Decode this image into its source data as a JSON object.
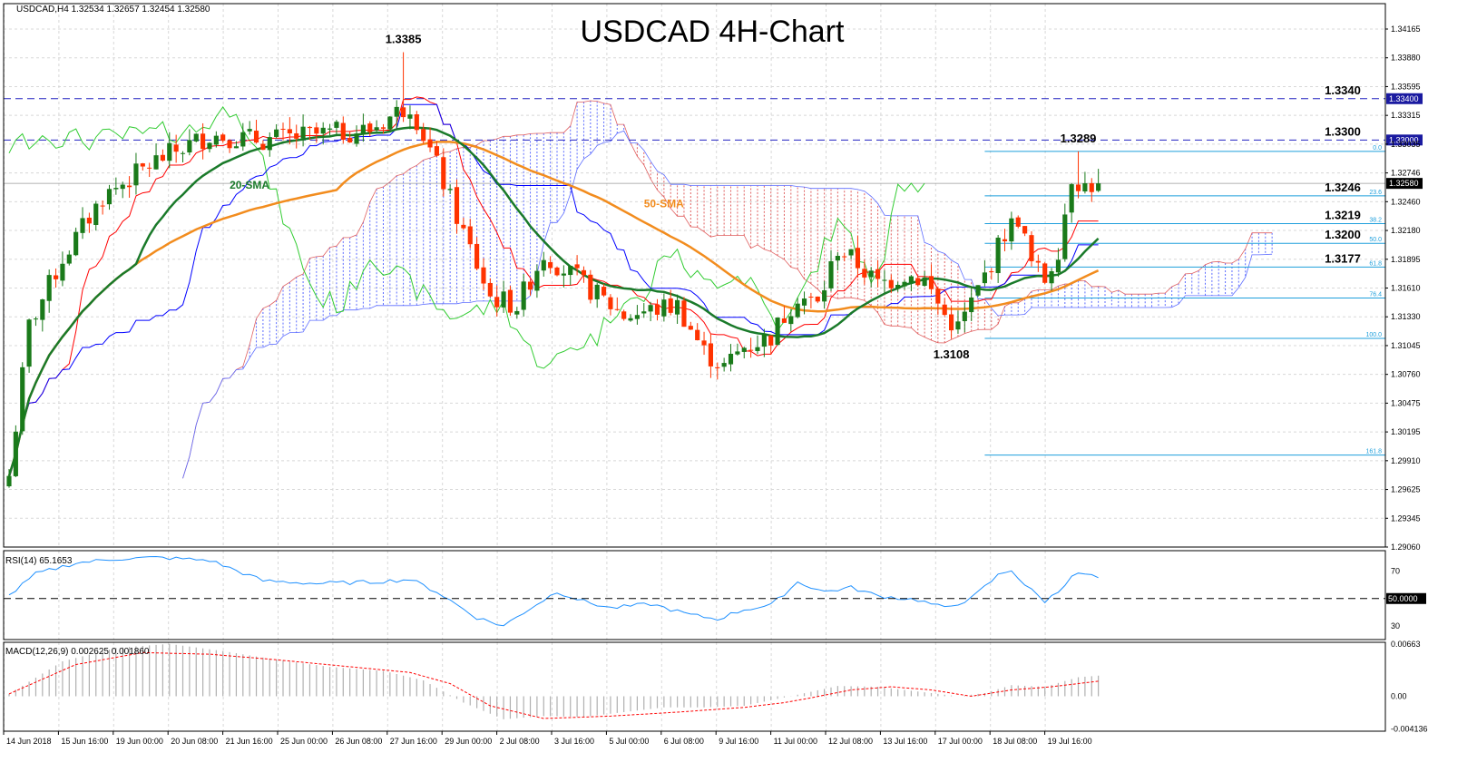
{
  "header": {
    "symbol_info": "USDCAD,H4  1.32534 1.32657 1.32454 1.32580",
    "title": "USDCAD 4H-Chart"
  },
  "colors": {
    "bull_candle": "#1a7a1a",
    "bear_candle": "#ff3300",
    "sma20": "#1a7a2a",
    "sma50": "#f28c1e",
    "tenkan": "#ff0000",
    "kijun": "#0000ff",
    "chikou": "#33cc33",
    "cloud_bull": "#e06060",
    "cloud_bear": "#5c6cff",
    "fib": "#1e9fdc",
    "hline": "#2020c0",
    "rsi": "#1e90ff",
    "macd_signal": "#ff0000",
    "macd_hist": "#b0b0b0",
    "grid": "#d8d8d8"
  },
  "chart_data": [
    {
      "type": "candlestick",
      "title": "USDCAD 4H-Chart",
      "ylim": [
        1.2906,
        1.3432
      ],
      "y_ticks": [
        "1.34165",
        "1.33880",
        "1.33595",
        "1.33315",
        "1.33035",
        "1.32746",
        "1.32460",
        "1.32180",
        "1.31895",
        "1.31610",
        "1.31330",
        "1.31045",
        "1.30760",
        "1.30475",
        "1.30195",
        "1.29910",
        "1.29625",
        "1.29345",
        "1.29060"
      ],
      "x_labels": [
        "14 Jun 2018",
        "15 Jun 16:00",
        "19 Jun 00:00",
        "20 Jun 08:00",
        "21 Jun 16:00",
        "25 Jun 00:00",
        "26 Jun 08:00",
        "27 Jun 16:00",
        "29 Jun 00:00",
        "2 Jul 08:00",
        "3 Jul 16:00",
        "5 Jul 00:00",
        "6 Jul 08:00",
        "9 Jul 16:00",
        "11 Jul 00:00",
        "12 Jul 08:00",
        "13 Jul 16:00",
        "17 Jul 00:00",
        "18 Jul 08:00",
        "19 Jul 16:00"
      ],
      "anchors": [
        {
          "bar": 0,
          "price": 1.2975
        },
        {
          "bar": 3,
          "price": 1.312
        },
        {
          "bar": 8,
          "price": 1.3185
        },
        {
          "bar": 14,
          "price": 1.3245
        },
        {
          "bar": 22,
          "price": 1.328
        },
        {
          "bar": 30,
          "price": 1.3305
        },
        {
          "bar": 38,
          "price": 1.33
        },
        {
          "bar": 46,
          "price": 1.3305
        },
        {
          "bar": 54,
          "price": 1.331
        },
        {
          "bar": 60,
          "price": 1.3335
        },
        {
          "bar": 64,
          "price": 1.3275
        },
        {
          "bar": 68,
          "price": 1.321
        },
        {
          "bar": 72,
          "price": 1.3148
        },
        {
          "bar": 76,
          "price": 1.314
        },
        {
          "bar": 80,
          "price": 1.319
        },
        {
          "bar": 84,
          "price": 1.317
        },
        {
          "bar": 88,
          "price": 1.315
        },
        {
          "bar": 92,
          "price": 1.313
        },
        {
          "bar": 96,
          "price": 1.3135
        },
        {
          "bar": 100,
          "price": 1.314
        },
        {
          "bar": 104,
          "price": 1.3095
        },
        {
          "bar": 107,
          "price": 1.308
        },
        {
          "bar": 110,
          "price": 1.31
        },
        {
          "bar": 114,
          "price": 1.311
        },
        {
          "bar": 118,
          "price": 1.315
        },
        {
          "bar": 121,
          "price": 1.314
        },
        {
          "bar": 124,
          "price": 1.3195
        },
        {
          "bar": 127,
          "price": 1.318
        },
        {
          "bar": 130,
          "price": 1.316
        },
        {
          "bar": 134,
          "price": 1.317
        },
        {
          "bar": 137,
          "price": 1.3165
        },
        {
          "bar": 140,
          "price": 1.313
        },
        {
          "bar": 142,
          "price": 1.3118
        },
        {
          "bar": 145,
          "price": 1.3155
        },
        {
          "bar": 149,
          "price": 1.321
        },
        {
          "bar": 151,
          "price": 1.3225
        },
        {
          "bar": 153,
          "price": 1.318
        },
        {
          "bar": 155,
          "price": 1.3165
        },
        {
          "bar": 157,
          "price": 1.3195
        },
        {
          "bar": 159,
          "price": 1.3265
        },
        {
          "bar": 161,
          "price": 1.3255
        },
        {
          "bar": 163,
          "price": 1.3258
        }
      ],
      "horizontal_levels": [
        {
          "price": 1.334,
          "label": "1.3340",
          "tag": "1.33400"
        },
        {
          "price": 1.33,
          "label": "1.3300",
          "tag": "1.33000"
        }
      ],
      "current_price_tag": "1.32580",
      "current_price": 1.3258,
      "fibonacci": {
        "from_bar": 146,
        "levels": [
          {
            "price": 1.3289,
            "label": "0.0"
          },
          {
            "price": 1.3246,
            "label": "23.6"
          },
          {
            "price": 1.3219,
            "label": "38.2"
          },
          {
            "price": 1.32,
            "label": "50.0"
          },
          {
            "price": 1.3177,
            "label": "61.8"
          },
          {
            "price": 1.3147,
            "label": "76.4"
          },
          {
            "price": 1.3108,
            "label": "100.0"
          },
          {
            "price": 1.2995,
            "label": "161.8"
          }
        ]
      },
      "annotations": [
        {
          "text": "1.3385",
          "bar": 59,
          "price": 1.3385,
          "position": "above"
        },
        {
          "text": "1.3340",
          "bar": 156,
          "price": 1.334,
          "position": "right-above"
        },
        {
          "text": "1.3289",
          "bar": 160,
          "price": 1.3289,
          "position": "above"
        },
        {
          "text": "1.3300",
          "bar": 156,
          "price": 1.33,
          "position": "right-above"
        },
        {
          "text": "1.3246",
          "bar": 156,
          "price": 1.3246,
          "position": "right-above"
        },
        {
          "text": "1.3219",
          "bar": 156,
          "price": 1.3219,
          "position": "right-above"
        },
        {
          "text": "1.3200",
          "bar": 156,
          "price": 1.32,
          "position": "right-above"
        },
        {
          "text": "1.3177",
          "bar": 156,
          "price": 1.3177,
          "position": "right-above"
        },
        {
          "text": "1.3108",
          "bar": 141,
          "price": 1.3108,
          "position": "below"
        }
      ],
      "series_labels": [
        {
          "text": "20-SMA",
          "bar": 33,
          "price": 1.3253
        },
        {
          "text": "50-SMA",
          "bar": 95,
          "price": 1.3235
        }
      ]
    },
    {
      "type": "line",
      "title": "RSI(14) 65.1653",
      "ylim": [
        20,
        85
      ],
      "y_ticks": [
        "70",
        "50.0000",
        "30"
      ],
      "level": 50,
      "anchors": [
        {
          "bar": 0,
          "value": 52
        },
        {
          "bar": 4,
          "value": 68
        },
        {
          "bar": 10,
          "value": 76
        },
        {
          "bar": 16,
          "value": 79
        },
        {
          "bar": 22,
          "value": 80
        },
        {
          "bar": 30,
          "value": 78
        },
        {
          "bar": 38,
          "value": 63
        },
        {
          "bar": 46,
          "value": 61
        },
        {
          "bar": 54,
          "value": 62
        },
        {
          "bar": 60,
          "value": 64
        },
        {
          "bar": 64,
          "value": 55
        },
        {
          "bar": 70,
          "value": 36
        },
        {
          "bar": 74,
          "value": 30
        },
        {
          "bar": 78,
          "value": 43
        },
        {
          "bar": 82,
          "value": 55
        },
        {
          "bar": 86,
          "value": 48
        },
        {
          "bar": 90,
          "value": 43
        },
        {
          "bar": 96,
          "value": 46
        },
        {
          "bar": 102,
          "value": 38
        },
        {
          "bar": 106,
          "value": 35
        },
        {
          "bar": 110,
          "value": 42
        },
        {
          "bar": 114,
          "value": 45
        },
        {
          "bar": 118,
          "value": 62
        },
        {
          "bar": 122,
          "value": 55
        },
        {
          "bar": 126,
          "value": 58
        },
        {
          "bar": 130,
          "value": 52
        },
        {
          "bar": 136,
          "value": 49
        },
        {
          "bar": 140,
          "value": 43
        },
        {
          "bar": 144,
          "value": 50
        },
        {
          "bar": 148,
          "value": 67
        },
        {
          "bar": 150,
          "value": 71
        },
        {
          "bar": 152,
          "value": 60
        },
        {
          "bar": 155,
          "value": 48
        },
        {
          "bar": 157,
          "value": 55
        },
        {
          "bar": 159,
          "value": 67
        },
        {
          "bar": 161,
          "value": 68
        },
        {
          "bar": 163,
          "value": 65
        }
      ]
    },
    {
      "type": "bar",
      "title": "MACD(12,26,9) 0.002625 0.001860",
      "ylim": [
        -0.0044,
        0.0068
      ],
      "y_ticks": [
        "0.00663",
        "0.00",
        "-0.004136"
      ],
      "hist_anchors": [
        {
          "bar": 0,
          "value": 0.0003
        },
        {
          "bar": 8,
          "value": 0.0044
        },
        {
          "bar": 16,
          "value": 0.0061
        },
        {
          "bar": 24,
          "value": 0.0066
        },
        {
          "bar": 32,
          "value": 0.0057
        },
        {
          "bar": 40,
          "value": 0.0046
        },
        {
          "bar": 48,
          "value": 0.0037
        },
        {
          "bar": 56,
          "value": 0.0032
        },
        {
          "bar": 62,
          "value": 0.002
        },
        {
          "bar": 68,
          "value": -0.0008
        },
        {
          "bar": 74,
          "value": -0.0029
        },
        {
          "bar": 80,
          "value": -0.0025
        },
        {
          "bar": 86,
          "value": -0.0026
        },
        {
          "bar": 92,
          "value": -0.002
        },
        {
          "bar": 98,
          "value": -0.0014
        },
        {
          "bar": 104,
          "value": -0.0014
        },
        {
          "bar": 110,
          "value": -0.0012
        },
        {
          "bar": 114,
          "value": -0.0005
        },
        {
          "bar": 118,
          "value": 0.0002
        },
        {
          "bar": 124,
          "value": 0.0013
        },
        {
          "bar": 130,
          "value": 0.0012
        },
        {
          "bar": 136,
          "value": 0.0006
        },
        {
          "bar": 142,
          "value": 0.0
        },
        {
          "bar": 146,
          "value": 0.0004
        },
        {
          "bar": 150,
          "value": 0.0014
        },
        {
          "bar": 155,
          "value": 0.0012
        },
        {
          "bar": 160,
          "value": 0.0024
        },
        {
          "bar": 163,
          "value": 0.0026
        }
      ],
      "signal_anchors": [
        {
          "bar": 0,
          "value": 0.0003
        },
        {
          "bar": 10,
          "value": 0.004
        },
        {
          "bar": 20,
          "value": 0.0055
        },
        {
          "bar": 30,
          "value": 0.0053
        },
        {
          "bar": 40,
          "value": 0.0046
        },
        {
          "bar": 50,
          "value": 0.0038
        },
        {
          "bar": 60,
          "value": 0.003
        },
        {
          "bar": 66,
          "value": 0.0016
        },
        {
          "bar": 72,
          "value": -0.0012
        },
        {
          "bar": 80,
          "value": -0.0028
        },
        {
          "bar": 90,
          "value": -0.0025
        },
        {
          "bar": 100,
          "value": -0.002
        },
        {
          "bar": 110,
          "value": -0.0014
        },
        {
          "bar": 116,
          "value": -0.0008
        },
        {
          "bar": 120,
          "value": -0.0002
        },
        {
          "bar": 126,
          "value": 0.0008
        },
        {
          "bar": 132,
          "value": 0.0012
        },
        {
          "bar": 138,
          "value": 0.0008
        },
        {
          "bar": 144,
          "value": 0.0
        },
        {
          "bar": 150,
          "value": 0.0008
        },
        {
          "bar": 156,
          "value": 0.0012
        },
        {
          "bar": 163,
          "value": 0.0019
        }
      ]
    }
  ]
}
